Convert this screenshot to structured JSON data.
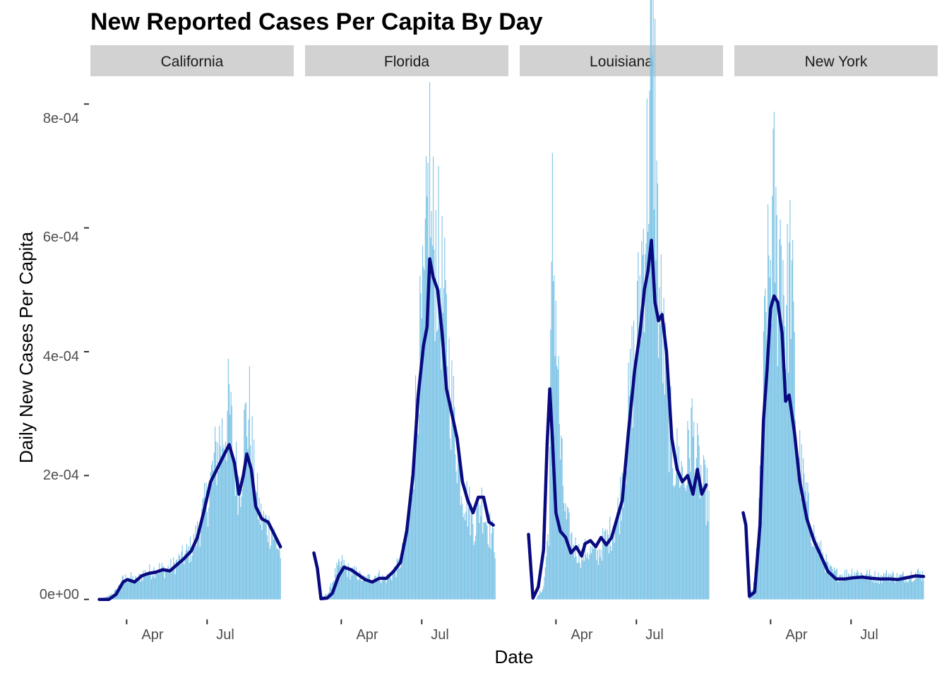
{
  "chart_data": {
    "type": "bar",
    "title": "New Reported Cases Per Capita By Day",
    "xlabel": "Date",
    "ylabel": "Daily New Cases Per Capita",
    "ylim": [
      -3e-05,
      0.00083
    ],
    "yticks": [
      {
        "value": 0,
        "label": "0e+00"
      },
      {
        "value": 0.0002,
        "label": "2e-04"
      },
      {
        "value": 0.0004,
        "label": "4e-04"
      },
      {
        "value": 0.0006,
        "label": "6e-04"
      },
      {
        "value": 0.0008,
        "label": "8e-04"
      }
    ],
    "xlim": [
      "2020-02-20",
      "2020-10-07"
    ],
    "xticks": [
      {
        "date": "2020-04-01",
        "label": "Apr"
      },
      {
        "date": "2020-07-01",
        "label": "Jul"
      }
    ],
    "grid": false,
    "bar_color": "#7ec4e6",
    "line_color": "#0a0a80",
    "series_note": "bars = daily new cases per capita; line = smoothed trend",
    "panels": [
      {
        "name": "California",
        "bars": [
          [
            "2020-03-01",
            1e-06
          ],
          [
            "2020-03-10",
            4e-06
          ],
          [
            "2020-03-20",
            1.4e-05
          ],
          [
            "2020-03-28",
            3.2e-05
          ],
          [
            "2020-04-04",
            3.6e-05
          ],
          [
            "2020-04-12",
            3e-05
          ],
          [
            "2020-04-20",
            4.2e-05
          ],
          [
            "2020-04-28",
            4.5e-05
          ],
          [
            "2020-05-06",
            5e-05
          ],
          [
            "2020-05-14",
            4.8e-05
          ],
          [
            "2020-05-22",
            5.2e-05
          ],
          [
            "2020-05-30",
            6.2e-05
          ],
          [
            "2020-06-07",
            7.2e-05
          ],
          [
            "2020-06-15",
            8.5e-05
          ],
          [
            "2020-06-23",
            0.00012
          ],
          [
            "2020-07-01",
            0.00016
          ],
          [
            "2020-07-08",
            0.00021
          ],
          [
            "2020-07-14",
            0.00025
          ],
          [
            "2020-07-20",
            0.00027
          ],
          [
            "2020-07-26",
            0.00031
          ],
          [
            "2020-08-01",
            0.00022
          ],
          [
            "2020-08-07",
            0.00018
          ],
          [
            "2020-08-13",
            0.00028
          ],
          [
            "2020-08-18",
            0.0003
          ],
          [
            "2020-08-24",
            0.00018
          ],
          [
            "2020-08-31",
            0.00013
          ],
          [
            "2020-09-07",
            0.00012
          ],
          [
            "2020-09-14",
            0.000105
          ],
          [
            "2020-09-22",
            7.5e-05
          ]
        ],
        "line": [
          [
            "2020-03-01",
            0
          ],
          [
            "2020-03-12",
            0
          ],
          [
            "2020-03-20",
            8e-06
          ],
          [
            "2020-03-28",
            2.8e-05
          ],
          [
            "2020-04-02",
            3.2e-05
          ],
          [
            "2020-04-10",
            2.8e-05
          ],
          [
            "2020-04-18",
            3.8e-05
          ],
          [
            "2020-04-26",
            4.2e-05
          ],
          [
            "2020-05-04",
            4.4e-05
          ],
          [
            "2020-05-12",
            4.8e-05
          ],
          [
            "2020-05-20",
            4.6e-05
          ],
          [
            "2020-05-28",
            5.6e-05
          ],
          [
            "2020-06-05",
            6.6e-05
          ],
          [
            "2020-06-13",
            7.8e-05
          ],
          [
            "2020-06-20",
            0.0001
          ],
          [
            "2020-06-27",
            0.00014
          ],
          [
            "2020-07-05",
            0.00019
          ],
          [
            "2020-07-12",
            0.00021
          ],
          [
            "2020-07-19",
            0.00023
          ],
          [
            "2020-07-26",
            0.00025
          ],
          [
            "2020-08-01",
            0.00022
          ],
          [
            "2020-08-06",
            0.00017
          ],
          [
            "2020-08-11",
            0.0002
          ],
          [
            "2020-08-15",
            0.000235
          ],
          [
            "2020-08-20",
            0.00021
          ],
          [
            "2020-08-25",
            0.00015
          ],
          [
            "2020-09-01",
            0.00013
          ],
          [
            "2020-09-08",
            0.000125
          ],
          [
            "2020-09-15",
            0.000105
          ],
          [
            "2020-09-22",
            8.5e-05
          ]
        ]
      },
      {
        "name": "Florida",
        "bars": [
          [
            "2020-03-10",
            3e-06
          ],
          [
            "2020-03-18",
            1.2e-05
          ],
          [
            "2020-03-26",
            4.5e-05
          ],
          [
            "2020-04-02",
            5.8e-05
          ],
          [
            "2020-04-10",
            4.5e-05
          ],
          [
            "2020-04-18",
            4.2e-05
          ],
          [
            "2020-04-26",
            3.2e-05
          ],
          [
            "2020-05-04",
            3.5e-05
          ],
          [
            "2020-05-12",
            4e-05
          ],
          [
            "2020-05-20",
            3.2e-05
          ],
          [
            "2020-05-28",
            4e-05
          ],
          [
            "2020-06-05",
            5.5e-05
          ],
          [
            "2020-06-13",
            9e-05
          ],
          [
            "2020-06-20",
            0.00019
          ],
          [
            "2020-06-27",
            0.00038
          ],
          [
            "2020-07-04",
            0.00047
          ],
          [
            "2020-07-08",
            0.00064
          ],
          [
            "2020-07-10",
            0.00071
          ],
          [
            "2020-07-12",
            0.00057
          ],
          [
            "2020-07-16",
            0.00058
          ],
          [
            "2020-07-22",
            0.00052
          ],
          [
            "2020-07-28",
            0.00044
          ],
          [
            "2020-08-04",
            0.00032
          ],
          [
            "2020-08-10",
            0.00025
          ],
          [
            "2020-08-16",
            0.00018
          ],
          [
            "2020-08-23",
            0.00015
          ],
          [
            "2020-08-30",
            0.00012
          ],
          [
            "2020-09-06",
            0.00016
          ],
          [
            "2020-09-14",
            0.00012
          ],
          [
            "2020-09-22",
            9e-05
          ]
        ],
        "line": [
          [
            "2020-03-01",
            7.5e-05
          ],
          [
            "2020-03-05",
            5e-05
          ],
          [
            "2020-03-09",
            1e-06
          ],
          [
            "2020-03-16",
            2e-06
          ],
          [
            "2020-03-22",
            1e-05
          ],
          [
            "2020-03-29",
            3.8e-05
          ],
          [
            "2020-04-04",
            5.2e-05
          ],
          [
            "2020-04-12",
            4.8e-05
          ],
          [
            "2020-04-20",
            4e-05
          ],
          [
            "2020-04-28",
            3.2e-05
          ],
          [
            "2020-05-06",
            2.8e-05
          ],
          [
            "2020-05-14",
            3.4e-05
          ],
          [
            "2020-05-22",
            3.4e-05
          ],
          [
            "2020-05-30",
            4.5e-05
          ],
          [
            "2020-06-07",
            6e-05
          ],
          [
            "2020-06-14",
            0.00011
          ],
          [
            "2020-06-21",
            0.0002
          ],
          [
            "2020-06-27",
            0.00033
          ],
          [
            "2020-07-03",
            0.00041
          ],
          [
            "2020-07-07",
            0.00044
          ],
          [
            "2020-07-10",
            0.00055
          ],
          [
            "2020-07-14",
            0.00052
          ],
          [
            "2020-07-19",
            0.0005
          ],
          [
            "2020-07-24",
            0.00043
          ],
          [
            "2020-07-29",
            0.00034
          ],
          [
            "2020-08-04",
            0.0003
          ],
          [
            "2020-08-10",
            0.00026
          ],
          [
            "2020-08-16",
            0.00019
          ],
          [
            "2020-08-22",
            0.00016
          ],
          [
            "2020-08-28",
            0.00014
          ],
          [
            "2020-09-03",
            0.000165
          ],
          [
            "2020-09-09",
            0.000165
          ],
          [
            "2020-09-15",
            0.000125
          ],
          [
            "2020-09-20",
            0.00012
          ]
        ]
      },
      {
        "name": "Louisiana",
        "bars": [
          [
            "2020-03-10",
            2e-06
          ],
          [
            "2020-03-18",
            2e-05
          ],
          [
            "2020-03-24",
            0.00012
          ],
          [
            "2020-03-28",
            0.00059
          ],
          [
            "2020-04-01",
            0.00047
          ],
          [
            "2020-04-06",
            0.00024
          ],
          [
            "2020-04-12",
            0.00013
          ],
          [
            "2020-04-18",
            0.0001
          ],
          [
            "2020-04-24",
            8e-05
          ],
          [
            "2020-04-30",
            7e-05
          ],
          [
            "2020-05-06",
            8e-05
          ],
          [
            "2020-05-12",
            7.5e-05
          ],
          [
            "2020-05-18",
            7e-05
          ],
          [
            "2020-05-24",
            9e-05
          ],
          [
            "2020-05-30",
            0.0001
          ],
          [
            "2020-06-06",
            0.00012
          ],
          [
            "2020-06-12",
            0.00015
          ],
          [
            "2020-06-19",
            0.00025
          ],
          [
            "2020-06-26",
            0.00036
          ],
          [
            "2020-07-03",
            0.00045
          ],
          [
            "2020-07-09",
            0.00058
          ],
          [
            "2020-07-13",
            0.00067
          ],
          [
            "2020-07-17",
            0.00083
          ],
          [
            "2020-07-22",
            0.00079
          ],
          [
            "2020-07-26",
            0.0005
          ],
          [
            "2020-07-31",
            0.00042
          ],
          [
            "2020-08-06",
            0.0003
          ],
          [
            "2020-08-12",
            0.00023
          ],
          [
            "2020-08-18",
            0.00022
          ],
          [
            "2020-08-25",
            0.00019
          ],
          [
            "2020-09-01",
            0.00028
          ],
          [
            "2020-09-08",
            0.00022
          ],
          [
            "2020-09-15",
            0.00018
          ],
          [
            "2020-09-21",
            0.00016
          ]
        ],
        "line": [
          [
            "2020-03-01",
            0.000105
          ],
          [
            "2020-03-06",
            2e-06
          ],
          [
            "2020-03-12",
            2e-05
          ],
          [
            "2020-03-18",
            8e-05
          ],
          [
            "2020-03-22",
            0.00025
          ],
          [
            "2020-03-25",
            0.00034
          ],
          [
            "2020-03-28",
            0.00026
          ],
          [
            "2020-04-01",
            0.00014
          ],
          [
            "2020-04-06",
            0.00011
          ],
          [
            "2020-04-12",
            0.0001
          ],
          [
            "2020-04-18",
            7.5e-05
          ],
          [
            "2020-04-24",
            8.5e-05
          ],
          [
            "2020-04-30",
            7e-05
          ],
          [
            "2020-05-04",
            9e-05
          ],
          [
            "2020-05-10",
            9.5e-05
          ],
          [
            "2020-05-16",
            8.5e-05
          ],
          [
            "2020-05-22",
            0.0001
          ],
          [
            "2020-05-28",
            8.8e-05
          ],
          [
            "2020-06-03",
            0.0001
          ],
          [
            "2020-06-09",
            0.00013
          ],
          [
            "2020-06-15",
            0.00016
          ],
          [
            "2020-06-22",
            0.00027
          ],
          [
            "2020-06-29",
            0.00037
          ],
          [
            "2020-07-05",
            0.00043
          ],
          [
            "2020-07-10",
            0.0005
          ],
          [
            "2020-07-14",
            0.00053
          ],
          [
            "2020-07-18",
            0.00058
          ],
          [
            "2020-07-22",
            0.00048
          ],
          [
            "2020-07-26",
            0.00045
          ],
          [
            "2020-07-30",
            0.00046
          ],
          [
            "2020-08-04",
            0.0004
          ],
          [
            "2020-08-10",
            0.00026
          ],
          [
            "2020-08-16",
            0.00021
          ],
          [
            "2020-08-22",
            0.00019
          ],
          [
            "2020-08-28",
            0.0002
          ],
          [
            "2020-09-03",
            0.00017
          ],
          [
            "2020-09-08",
            0.00021
          ],
          [
            "2020-09-13",
            0.00017
          ],
          [
            "2020-09-18",
            0.000185
          ]
        ]
      },
      {
        "name": "New York",
        "bars": [
          [
            "2020-03-08",
            5e-06
          ],
          [
            "2020-03-14",
            2.5e-05
          ],
          [
            "2020-03-20",
            0.00017
          ],
          [
            "2020-03-26",
            0.00044
          ],
          [
            "2020-04-01",
            0.00055
          ],
          [
            "2020-04-05",
            0.00063
          ],
          [
            "2020-04-09",
            0.00051
          ],
          [
            "2020-04-13",
            0.0006
          ],
          [
            "2020-04-18",
            0.00045
          ],
          [
            "2020-04-24",
            0.00055
          ],
          [
            "2020-04-30",
            0.00028
          ],
          [
            "2020-05-06",
            0.0002
          ],
          [
            "2020-05-14",
            0.00014
          ],
          [
            "2020-05-22",
            9e-05
          ],
          [
            "2020-05-30",
            7e-05
          ],
          [
            "2020-06-07",
            4.5e-05
          ],
          [
            "2020-06-16",
            4e-05
          ],
          [
            "2020-06-25",
            4e-05
          ],
          [
            "2020-07-04",
            4.5e-05
          ],
          [
            "2020-07-14",
            4e-05
          ],
          [
            "2020-07-24",
            3.8e-05
          ],
          [
            "2020-08-03",
            3.5e-05
          ],
          [
            "2020-08-13",
            4e-05
          ],
          [
            "2020-08-23",
            3.5e-05
          ],
          [
            "2020-09-02",
            3.8e-05
          ],
          [
            "2020-09-12",
            4.2e-05
          ],
          [
            "2020-09-21",
            4e-05
          ]
        ],
        "line": [
          [
            "2020-03-01",
            0.00014
          ],
          [
            "2020-03-04",
            0.00012
          ],
          [
            "2020-03-08",
            5e-06
          ],
          [
            "2020-03-14",
            1.2e-05
          ],
          [
            "2020-03-20",
            0.00012
          ],
          [
            "2020-03-24",
            0.00029
          ],
          [
            "2020-03-28",
            0.00037
          ],
          [
            "2020-04-01",
            0.00047
          ],
          [
            "2020-04-05",
            0.00049
          ],
          [
            "2020-04-09",
            0.00048
          ],
          [
            "2020-04-14",
            0.00043
          ],
          [
            "2020-04-18",
            0.00032
          ],
          [
            "2020-04-22",
            0.00033
          ],
          [
            "2020-04-28",
            0.00027
          ],
          [
            "2020-05-04",
            0.00019
          ],
          [
            "2020-05-12",
            0.00013
          ],
          [
            "2020-05-20",
            9.5e-05
          ],
          [
            "2020-05-28",
            7e-05
          ],
          [
            "2020-06-05",
            4.5e-05
          ],
          [
            "2020-06-14",
            3.3e-05
          ],
          [
            "2020-06-24",
            3.3e-05
          ],
          [
            "2020-07-04",
            3.5e-05
          ],
          [
            "2020-07-14",
            3.6e-05
          ],
          [
            "2020-07-24",
            3.4e-05
          ],
          [
            "2020-08-03",
            3.3e-05
          ],
          [
            "2020-08-13",
            3.3e-05
          ],
          [
            "2020-08-23",
            3.2e-05
          ],
          [
            "2020-09-02",
            3.5e-05
          ],
          [
            "2020-09-12",
            3.8e-05
          ],
          [
            "2020-09-21",
            3.7e-05
          ]
        ]
      }
    ]
  }
}
